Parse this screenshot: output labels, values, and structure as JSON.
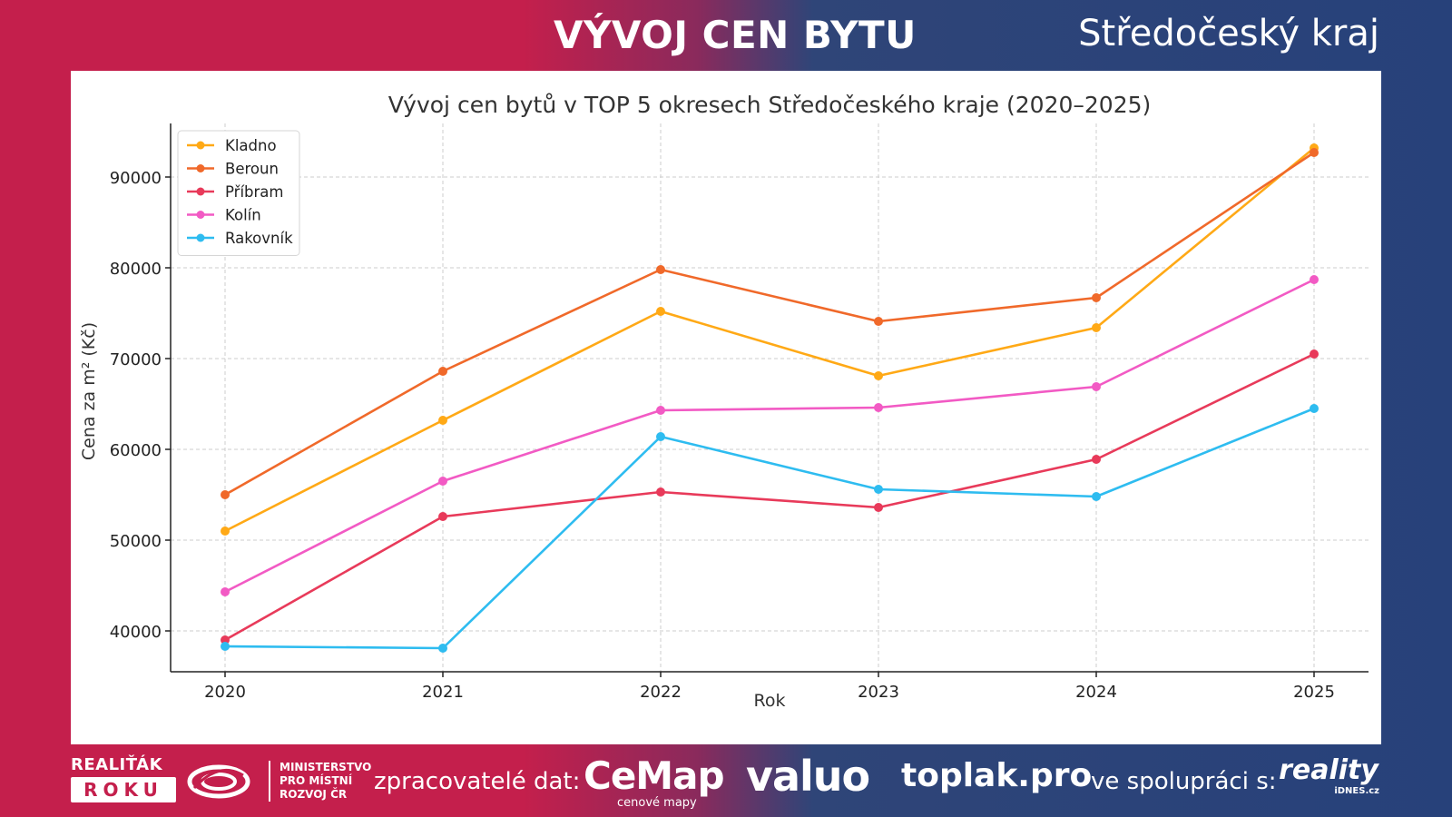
{
  "header": {
    "title": "VÝVOJ CEN BYTU",
    "region": "Středočeský kraj"
  },
  "chart_data": {
    "type": "line",
    "title": "Vývoj cen bytů v TOP 5 okresech Středočeského kraje (2020–2025)",
    "xlabel": "Rok",
    "ylabel": "Cena za m² (Kč)",
    "x": [
      "2020",
      "2021",
      "2022",
      "2023",
      "2024",
      "2025"
    ],
    "xlim": [
      2019.75,
      2025.25
    ],
    "ylim": [
      35500,
      95900
    ],
    "yticks": [
      40000,
      50000,
      60000,
      70000,
      80000,
      90000
    ],
    "grid": true,
    "legend_position": "top-left",
    "series": [
      {
        "name": "Kladno",
        "color": "#ffa916",
        "values": [
          51000,
          63200,
          75200,
          68100,
          73400,
          93200
        ]
      },
      {
        "name": "Beroun",
        "color": "#f0692a",
        "values": [
          55000,
          68600,
          79800,
          74100,
          76700,
          92700
        ]
      },
      {
        "name": "Příbram",
        "color": "#e83a5a",
        "values": [
          39000,
          52600,
          55300,
          53600,
          58900,
          70500
        ]
      },
      {
        "name": "Kolín",
        "color": "#f25ac4",
        "values": [
          44300,
          56500,
          64300,
          64600,
          66900,
          78700
        ]
      },
      {
        "name": "Rakovník",
        "color": "#2ebcf0",
        "values": [
          38300,
          38100,
          61400,
          55600,
          54800,
          64500
        ]
      }
    ]
  },
  "footer": {
    "realitak_top": "REALIŤÁK",
    "realitak_box": "ROKU",
    "ministry_line1": "MINISTERSTVO",
    "ministry_line2": "PRO MÍSTNÍ",
    "ministry_line3": "ROZVOJ ČR",
    "processors_label": "zpracovatelé dat:",
    "cemap": "CeMap",
    "cemap_sub": "cenové mapy",
    "valuo": "valuo",
    "toplak": "toplak.pro",
    "cooperation_label": "ve spolupráci s:",
    "reality": "reality",
    "reality_sub": "iDNES.cz"
  }
}
